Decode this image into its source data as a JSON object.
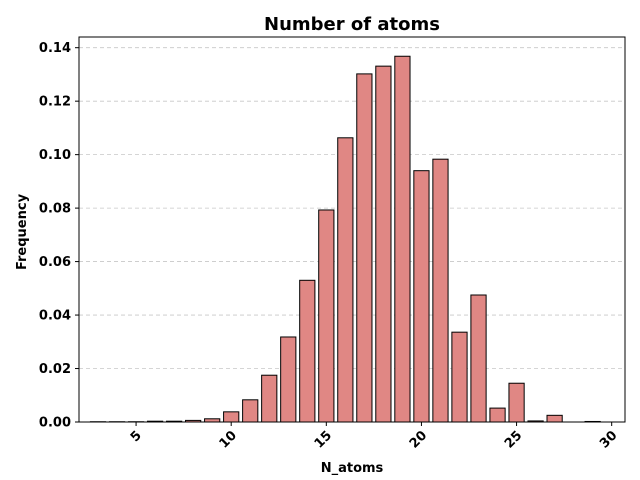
{
  "chart_data": {
    "type": "bar",
    "title": "Number of atoms",
    "xlabel": "N_atoms",
    "ylabel": "Frequency",
    "bar_color": "#e08784",
    "edge_color": "#000000",
    "grid": "y-dashed",
    "xlim": [
      2,
      30.7
    ],
    "ylim": [
      0,
      0.144
    ],
    "xticks": [
      5,
      10,
      15,
      20,
      25,
      30
    ],
    "xtick_labels": [
      "5",
      "10",
      "15",
      "20",
      "25",
      "30"
    ],
    "yticks": [
      0.0,
      0.02,
      0.04,
      0.06,
      0.08,
      0.1,
      0.12,
      0.14
    ],
    "ytick_labels": [
      "0.00",
      "0.02",
      "0.04",
      "0.06",
      "0.08",
      "0.10",
      "0.12",
      "0.14"
    ],
    "x": [
      3,
      4,
      5,
      6,
      7,
      8,
      9,
      10,
      11,
      12,
      13,
      14,
      15,
      16,
      17,
      18,
      19,
      20,
      21,
      22,
      23,
      24,
      25,
      26,
      27,
      28,
      29
    ],
    "values": [
      0.0001,
      0.0001,
      0.0001,
      0.0003,
      0.0003,
      0.0006,
      0.0012,
      0.0038,
      0.0083,
      0.0175,
      0.0318,
      0.053,
      0.0793,
      0.1063,
      0.1302,
      0.1331,
      0.1368,
      0.094,
      0.0983,
      0.0336,
      0.0475,
      0.0052,
      0.0145,
      0.0004,
      0.0025,
      0.0,
      0.0002
    ]
  }
}
